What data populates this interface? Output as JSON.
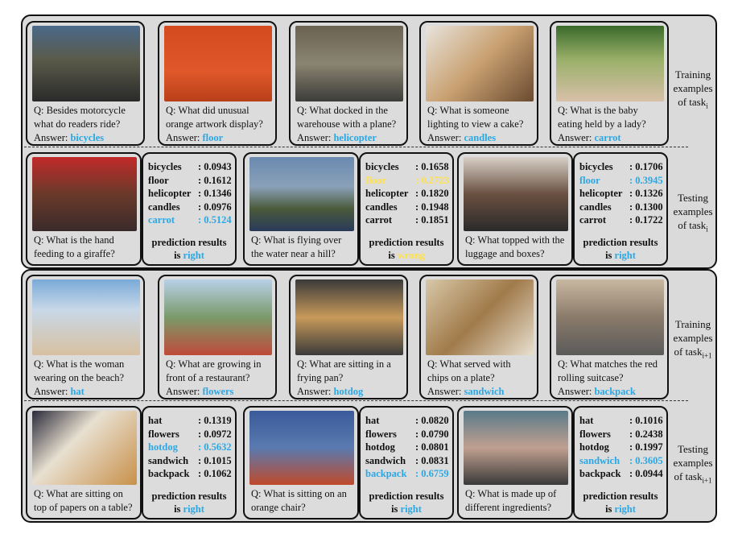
{
  "colors": {
    "highlight": "#2aa8e6",
    "wrong": "#ffe14a",
    "panel": "#dadada"
  },
  "side_labels": {
    "train1": {
      "l1": "Training",
      "l2": "examples",
      "l3": "of task",
      "sub": "i"
    },
    "test1": {
      "l1": "Testing",
      "l2": "examples",
      "l3": "of task",
      "sub": "i"
    },
    "train2": {
      "l1": "Training",
      "l2": "examples",
      "l3": "of task",
      "sub": "i+1"
    },
    "test2": {
      "l1": "Testing",
      "l2": "examples",
      "l3": "of task",
      "sub": "i+1"
    }
  },
  "answer_prefix": "Answer:",
  "result_label": "prediction results",
  "result_is": "is",
  "train1": [
    {
      "q": "Q: Besides motorcycle\nwhat do readers ride?",
      "a": "bicycles"
    },
    {
      "q": "Q: What did unusual\norange artwork display?",
      "a": "floor"
    },
    {
      "q": "Q: What docked in the\nwarehouse with a plane?",
      "a": "helicopter"
    },
    {
      "q": "Q: What is someone\nlighting to view a cake?",
      "a": "candles"
    },
    {
      "q": "Q: What is the baby\neating held by a lady?",
      "a": "carrot"
    }
  ],
  "test1": [
    {
      "q": "Q: What is the hand\nfeeding to a giraffe?",
      "scores": [
        [
          "bicycles",
          ": 0.0943"
        ],
        [
          "floor",
          ": 0.1612"
        ],
        [
          "helicopter",
          ": 0.1346"
        ],
        [
          "candles",
          ": 0.0976"
        ],
        [
          "carrot",
          ": 0.5124"
        ]
      ],
      "hl": 4,
      "result": "right"
    },
    {
      "q": "Q: What is flying over\nthe water near a hill?",
      "scores": [
        [
          "bicycles",
          ": 0.1658"
        ],
        [
          "floor",
          ": 0.2723"
        ],
        [
          "helicopter",
          ": 0.1820"
        ],
        [
          "candles",
          ": 0.1948"
        ],
        [
          "carrot",
          ": 0.1851"
        ]
      ],
      "hl": 1,
      "result": "wrong"
    },
    {
      "q": "Q: What topped with the\nluggage and boxes?",
      "scores": [
        [
          "bicycles",
          ": 0.1706"
        ],
        [
          "floor",
          ": 0.3945"
        ],
        [
          "helicopter",
          ": 0.1326"
        ],
        [
          "candles",
          ": 0.1300"
        ],
        [
          "carrot",
          ": 0.1722"
        ]
      ],
      "hl": 1,
      "result": "right"
    }
  ],
  "train2": [
    {
      "q": "Q: What is the woman\nwearing on the beach?",
      "a": "hat"
    },
    {
      "q": "Q: What are growing in\nfront of a restaurant?",
      "a": "flowers"
    },
    {
      "q": "Q: What are sitting in a\nfrying pan?",
      "a": "hotdog"
    },
    {
      "q": "Q: What served with\nchips on a plate?",
      "a": "sandwich"
    },
    {
      "q": "Q: What matches the red\nrolling suitcase?",
      "a": "backpack"
    }
  ],
  "test2": [
    {
      "q": "Q: What are sitting on\ntop of papers on a table?",
      "scores": [
        [
          "hat",
          ": 0.1319"
        ],
        [
          "flowers",
          ": 0.0972"
        ],
        [
          "hotdog",
          ": 0.5632"
        ],
        [
          "sandwich",
          ": 0.1015"
        ],
        [
          "backpack",
          ": 0.1062"
        ]
      ],
      "hl": 2,
      "result": "right"
    },
    {
      "q": "Q: What is sitting on an\norange chair?",
      "scores": [
        [
          "hat",
          ": 0.0820"
        ],
        [
          "flowers",
          ": 0.0790"
        ],
        [
          "hotdog",
          ": 0.0801"
        ],
        [
          "sandwich",
          ": 0.0831"
        ],
        [
          "backpack",
          ": 0.6759"
        ]
      ],
      "hl": 4,
      "result": "right"
    },
    {
      "q": "Q: What is made up of\ndifferent ingredients?",
      "scores": [
        [
          "hat",
          ": 0.1016"
        ],
        [
          "flowers",
          ": 0.2438"
        ],
        [
          "hotdog",
          ": 0.1997"
        ],
        [
          "sandwich",
          ": 0.3605"
        ],
        [
          "backpack",
          ": 0.0944"
        ]
      ],
      "hl": 3,
      "result": "right"
    }
  ]
}
